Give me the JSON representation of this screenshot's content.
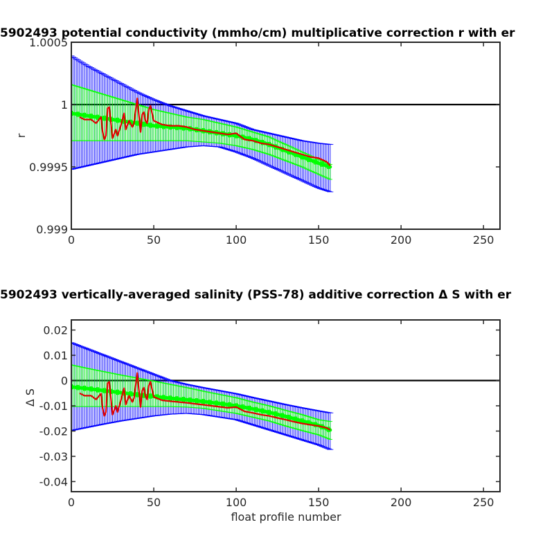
{
  "chart_data": [
    {
      "type": "line",
      "title": "5902493 potential conductivity (mmho/cm) multiplicative correction r with er",
      "xlabel": "",
      "ylabel": "r",
      "xlim": [
        0,
        260
      ],
      "ylim": [
        0.999,
        1.0005
      ],
      "xticks": [
        0,
        50,
        100,
        150,
        200,
        250
      ],
      "xtick_labels": [
        "0",
        "50",
        "100",
        "150",
        "200",
        "250"
      ],
      "yticks": [
        0.999,
        0.9995,
        1,
        1.0005
      ],
      "ytick_labels": [
        "0.999",
        "0.9995",
        "1",
        "1.0005"
      ],
      "reference_line": {
        "y": 1,
        "color": "#000000"
      },
      "series": [
        {
          "color": "#0000ff",
          "style": "errorbar",
          "x": [
            0,
            10,
            20,
            30,
            40,
            50,
            60,
            70,
            80,
            90,
            100,
            110,
            120,
            130,
            140,
            150,
            157
          ],
          "center": [
            0.99997,
            0.99994,
            0.99991,
            0.99988,
            0.99985,
            0.99982,
            0.9998,
            0.99979,
            0.99978,
            0.99977,
            0.99976,
            0.99973,
            0.9997,
            0.99967,
            0.99963,
            0.9996,
            0.99958
          ],
          "upper": [
            1.00039,
            1.00031,
            1.00024,
            1.00017,
            1.0001,
            1.00004,
            0.99999,
            0.99995,
            0.99991,
            0.99988,
            0.99985,
            0.9998,
            0.99977,
            0.99974,
            0.99971,
            0.99969,
            0.99968
          ],
          "lower": [
            0.99948,
            0.99951,
            0.99954,
            0.99957,
            0.9996,
            0.99962,
            0.99964,
            0.99966,
            0.99967,
            0.99966,
            0.99962,
            0.99957,
            0.99951,
            0.99945,
            0.99939,
            0.99933,
            0.9993
          ]
        },
        {
          "color": "#00ff00",
          "style": "errorbar",
          "x": [
            0,
            10,
            20,
            30,
            40,
            50,
            60,
            70,
            80,
            90,
            100,
            110,
            120,
            130,
            140,
            150,
            157
          ],
          "center": [
            0.99993,
            0.99991,
            0.99989,
            0.99987,
            0.99985,
            0.99983,
            0.99982,
            0.99981,
            0.99979,
            0.99977,
            0.99975,
            0.99972,
            0.99968,
            0.99963,
            0.99958,
            0.99953,
            0.9995
          ],
          "upper": [
            1.00016,
            1.00012,
            1.00008,
            1.00004,
            1.0,
            0.99996,
            0.99993,
            0.9999,
            0.99988,
            0.99985,
            0.99982,
            0.99978,
            0.99974,
            0.99968,
            0.99962,
            0.99956,
            0.99952
          ],
          "lower": [
            0.99971,
            0.99971,
            0.99971,
            0.99971,
            0.99971,
            0.99971,
            0.99971,
            0.99971,
            0.9997,
            0.99969,
            0.99967,
            0.99964,
            0.9996,
            0.99955,
            0.9995,
            0.99944,
            0.9994
          ]
        },
        {
          "color": "#e00000",
          "style": "line",
          "x": [
            5,
            8,
            12,
            15,
            18,
            19,
            20,
            21,
            22,
            23,
            25,
            27,
            28,
            30,
            32,
            33,
            35,
            37,
            38,
            40,
            42,
            43,
            44,
            45,
            46,
            47,
            48,
            50,
            55,
            60,
            65,
            70,
            75,
            80,
            85,
            90,
            95,
            100,
            105,
            110,
            115,
            120,
            125,
            130,
            135,
            140,
            145,
            150,
            155,
            157
          ],
          "y": [
            0.9999,
            0.99988,
            0.99988,
            0.99985,
            0.9999,
            0.99978,
            0.99972,
            0.99975,
            0.99997,
            0.99998,
            0.99973,
            0.9998,
            0.99975,
            0.99983,
            0.99993,
            0.9998,
            0.99987,
            0.99982,
            0.99985,
            1.00005,
            0.99978,
            0.99992,
            0.99994,
            0.99987,
            0.99985,
            0.99996,
            0.99999,
            0.99987,
            0.99984,
            0.99983,
            0.99983,
            0.99982,
            0.9998,
            0.99979,
            0.99978,
            0.99977,
            0.99976,
            0.99977,
            0.99972,
            0.99971,
            0.99969,
            0.99968,
            0.99966,
            0.99964,
            0.99962,
            0.9996,
            0.99958,
            0.99957,
            0.99954,
            0.99951
          ]
        }
      ]
    },
    {
      "type": "line",
      "title": "5902493 vertically-averaged salinity (PSS-78) additive correction Δ S with er",
      "xlabel": "float profile number",
      "ylabel": "Δ S",
      "xlim": [
        0,
        260
      ],
      "ylim": [
        -0.044,
        0.024
      ],
      "xticks": [
        0,
        50,
        100,
        150,
        200,
        250
      ],
      "xtick_labels": [
        "0",
        "50",
        "100",
        "150",
        "200",
        "250"
      ],
      "yticks": [
        -0.04,
        -0.03,
        -0.02,
        -0.01,
        0,
        0.01,
        0.02
      ],
      "ytick_labels": [
        "-0.04",
        "-0.03",
        "-0.02",
        "-0.01",
        "0",
        "0.01",
        "0.02"
      ],
      "reference_line": {
        "y": 0,
        "color": "#000000"
      },
      "series": [
        {
          "color": "#0000ff",
          "style": "errorbar",
          "x": [
            0,
            10,
            20,
            30,
            40,
            50,
            60,
            70,
            80,
            90,
            100,
            110,
            120,
            130,
            140,
            150,
            157
          ],
          "center": [
            -0.0023,
            -0.0035,
            -0.0045,
            -0.0055,
            -0.0065,
            -0.007,
            -0.0075,
            -0.008,
            -0.0083,
            -0.0086,
            -0.009,
            -0.0099,
            -0.0109,
            -0.012,
            -0.0135,
            -0.015,
            -0.0157
          ],
          "upper": [
            0.015,
            0.0125,
            0.01,
            0.0075,
            0.005,
            0.0025,
            0.0,
            -0.0015,
            -0.0028,
            -0.004,
            -0.0052,
            -0.0067,
            -0.0081,
            -0.0095,
            -0.0108,
            -0.012,
            -0.0128
          ],
          "lower": [
            -0.0198,
            -0.0185,
            -0.0172,
            -0.016,
            -0.015,
            -0.014,
            -0.0133,
            -0.013,
            -0.0135,
            -0.0145,
            -0.0155,
            -0.0175,
            -0.0195,
            -0.0215,
            -0.0235,
            -0.0255,
            -0.0273
          ]
        },
        {
          "color": "#00ff00",
          "style": "errorbar",
          "x": [
            0,
            10,
            20,
            30,
            40,
            50,
            60,
            70,
            80,
            90,
            100,
            110,
            120,
            130,
            140,
            150,
            157
          ],
          "center": [
            -0.0025,
            -0.0032,
            -0.004,
            -0.0048,
            -0.0056,
            -0.0063,
            -0.007,
            -0.0076,
            -0.0083,
            -0.0091,
            -0.01,
            -0.0112,
            -0.0126,
            -0.0142,
            -0.016,
            -0.0178,
            -0.0196
          ],
          "upper": [
            0.0062,
            0.0048,
            0.0035,
            0.0022,
            0.001,
            -0.0002,
            -0.0015,
            -0.0028,
            -0.0042,
            -0.0055,
            -0.0068,
            -0.0085,
            -0.01,
            -0.0118,
            -0.0135,
            -0.0155,
            -0.0162
          ],
          "lower": [
            -0.0103,
            -0.0103,
            -0.0103,
            -0.0103,
            -0.0103,
            -0.0103,
            -0.0103,
            -0.0105,
            -0.011,
            -0.012,
            -0.013,
            -0.0145,
            -0.016,
            -0.018,
            -0.0198,
            -0.0215,
            -0.0233
          ]
        },
        {
          "color": "#e00000",
          "style": "line",
          "x": [
            5,
            8,
            12,
            15,
            18,
            19,
            20,
            21,
            22,
            23,
            25,
            27,
            28,
            30,
            32,
            33,
            35,
            37,
            38,
            40,
            42,
            43,
            44,
            45,
            46,
            47,
            48,
            50,
            55,
            60,
            65,
            70,
            75,
            80,
            85,
            90,
            95,
            100,
            105,
            110,
            115,
            120,
            125,
            130,
            135,
            140,
            145,
            150,
            155,
            157
          ],
          "y": [
            -0.005,
            -0.006,
            -0.006,
            -0.0075,
            -0.0052,
            -0.011,
            -0.014,
            -0.0125,
            -0.001,
            -0.0005,
            -0.0135,
            -0.01,
            -0.0125,
            -0.008,
            -0.003,
            -0.0095,
            -0.006,
            -0.0085,
            -0.007,
            0.003,
            -0.0105,
            -0.004,
            -0.0028,
            -0.0062,
            -0.0075,
            -0.002,
            -0.0005,
            -0.0065,
            -0.0078,
            -0.0082,
            -0.0085,
            -0.0088,
            -0.0092,
            -0.0096,
            -0.01,
            -0.0104,
            -0.0108,
            -0.0105,
            -0.0122,
            -0.0128,
            -0.0135,
            -0.014,
            -0.0148,
            -0.0155,
            -0.0163,
            -0.017,
            -0.0175,
            -0.018,
            -0.0188,
            -0.0195
          ]
        }
      ]
    }
  ]
}
